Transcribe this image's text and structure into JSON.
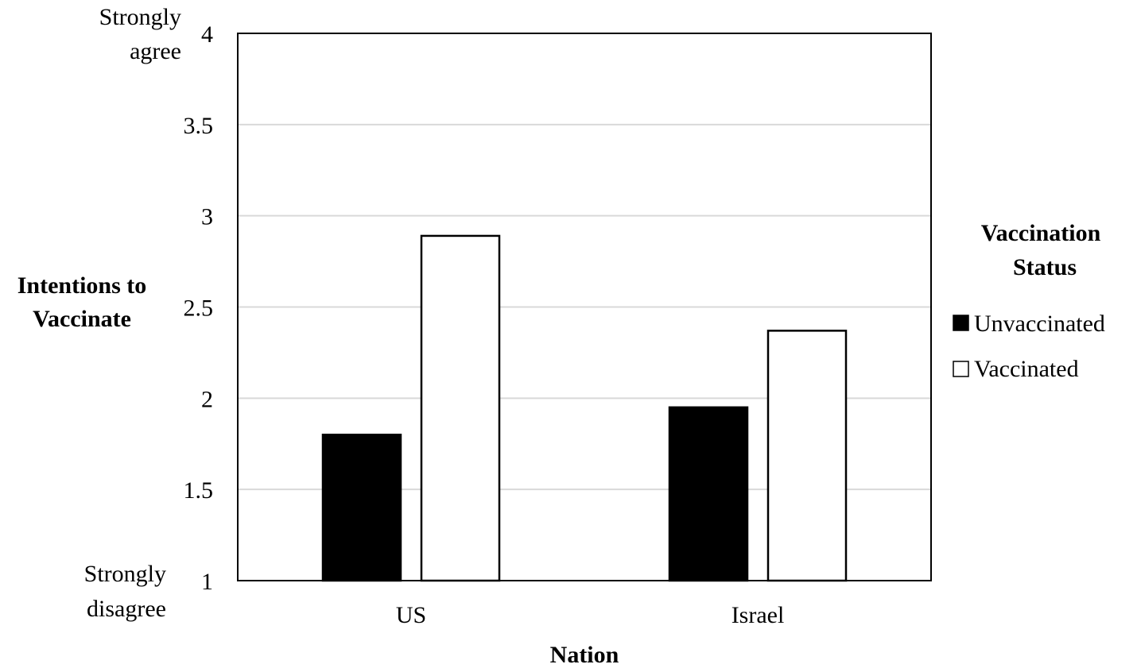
{
  "chart_data": {
    "type": "bar",
    "categories": [
      "US",
      "Israel"
    ],
    "series": [
      {
        "name": "Unvaccinated",
        "values": [
          1.8,
          1.95
        ],
        "color": "#000000"
      },
      {
        "name": "Vaccinated",
        "values": [
          2.89,
          2.37
        ],
        "color": "#ffffff"
      }
    ],
    "xlabel": "Nation",
    "ylabel_lines": [
      "Intentions to",
      "Vaccinate"
    ],
    "ylim": [
      1,
      4
    ],
    "yticks": [
      1,
      1.5,
      2,
      2.5,
      3,
      3.5,
      4
    ],
    "ytick_labels": [
      "1",
      "1.5",
      "2",
      "2.5",
      "3",
      "3.5",
      "4"
    ],
    "y_anchor_top_lines": [
      "Strongly",
      "agree"
    ],
    "y_anchor_bottom_lines": [
      "Strongly",
      "disagree"
    ],
    "legend_title_lines": [
      "Vaccination",
      "Status"
    ],
    "legend_position": "right",
    "grid": true,
    "grid_color": "#d9d9d9"
  }
}
